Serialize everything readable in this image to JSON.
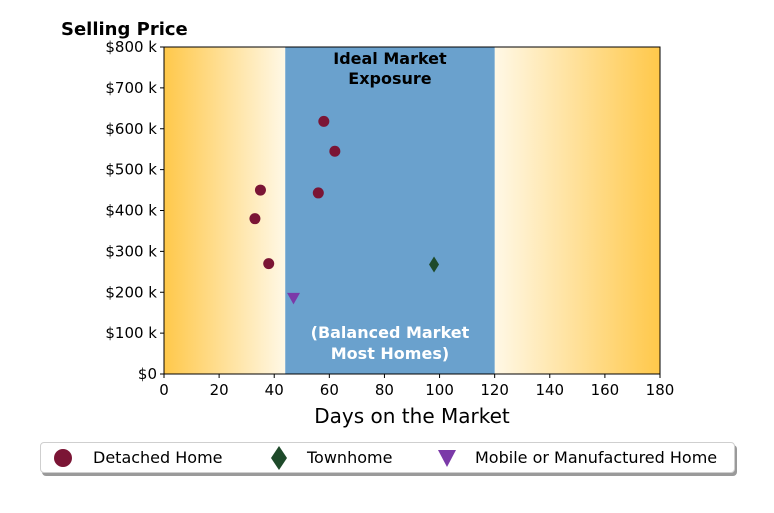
{
  "chart_data": {
    "type": "scatter",
    "title": "Selling Price",
    "xlabel": "Days on the Market",
    "ylabel": "",
    "xlim": [
      0,
      180
    ],
    "ylim": [
      0,
      800
    ],
    "x_ticks": [
      0,
      20,
      40,
      60,
      80,
      100,
      120,
      140,
      160,
      180
    ],
    "y_ticks": [
      0,
      100,
      200,
      300,
      400,
      500,
      600,
      700,
      800
    ],
    "y_tick_labels": [
      "$0",
      "$100 k",
      "$200 k",
      "$300 k",
      "$400 k",
      "$500 k",
      "$600 k",
      "$700 k",
      "$800 k"
    ],
    "grid": false,
    "background": {
      "gradient_colors": [
        "#ffc84a",
        "#fff8e6"
      ]
    },
    "band": {
      "x_start": 44,
      "x_end": 120,
      "color": "#6aa1cd",
      "top_label": [
        "Ideal Market",
        "Exposure"
      ],
      "bottom_label": [
        "(Balanced Market",
        "Most Homes)"
      ]
    },
    "series": [
      {
        "name": "Detached Home",
        "marker": "circle",
        "color": "#7b1535",
        "points": [
          [
            33,
            380
          ],
          [
            35,
            450
          ],
          [
            38,
            270
          ],
          [
            56,
            443
          ],
          [
            58,
            618
          ],
          [
            62,
            545
          ]
        ]
      },
      {
        "name": "Townhome",
        "marker": "diamond",
        "color": "#1e4a2a",
        "points": [
          [
            98,
            268
          ]
        ]
      },
      {
        "name": "Mobile or Manufactured Home",
        "marker": "triangle-down",
        "color": "#7b3aa8",
        "points": [
          [
            47,
            185
          ]
        ]
      }
    ],
    "legend_position": "bottom-center"
  }
}
